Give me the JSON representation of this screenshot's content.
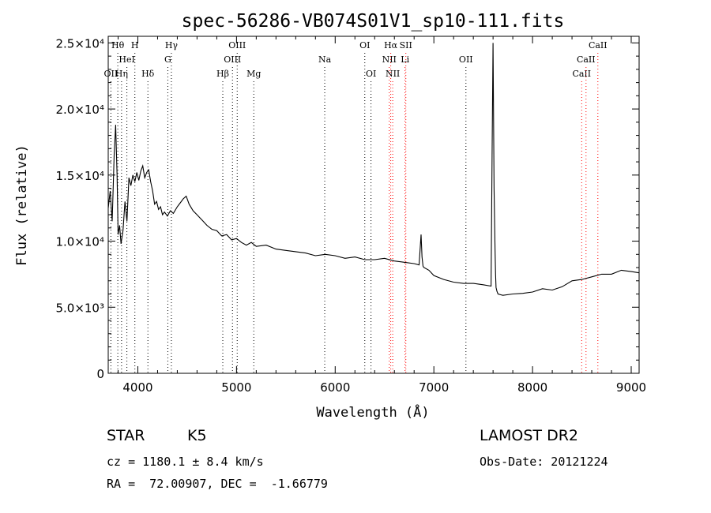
{
  "chart_data": {
    "type": "line",
    "title": "spec-56286-VB074S01V1_sp10-111.fits",
    "xlabel": "Wavelength (Å)",
    "ylabel": "Flux (relative)",
    "xlim": [
      3700,
      9080
    ],
    "ylim": [
      0,
      25500
    ],
    "x_ticks": [
      4000,
      5000,
      6000,
      7000,
      8000,
      9000
    ],
    "y_ticks": [
      {
        "value": 0,
        "label": "0"
      },
      {
        "value": 5000,
        "label": "5.0×10³"
      },
      {
        "value": 10000,
        "label": "1.0×10⁴"
      },
      {
        "value": 15000,
        "label": "1.5×10⁴"
      },
      {
        "value": 20000,
        "label": "2.0×10⁴"
      },
      {
        "value": 25000,
        "label": "2.5×10⁴"
      }
    ],
    "grid": false,
    "series": [
      {
        "x": [
          3700,
          3720,
          3740,
          3760,
          3775,
          3790,
          3800,
          3815,
          3830,
          3850,
          3870,
          3890,
          3910,
          3930,
          3950,
          3970,
          3990,
          4010,
          4030,
          4050,
          4070,
          4090,
          4110,
          4130,
          4150,
          4170,
          4190,
          4210,
          4230,
          4250,
          4270,
          4300,
          4330,
          4360,
          4400,
          4430,
          4460,
          4490,
          4520,
          4560,
          4600,
          4650,
          4700,
          4750,
          4800,
          4850,
          4900,
          4950,
          5000,
          5050,
          5100,
          5150,
          5200,
          5300,
          5400,
          5500,
          5600,
          5700,
          5800,
          5900,
          6000,
          6100,
          6200,
          6300,
          6400,
          6500,
          6600,
          6700,
          6800,
          6850,
          6870,
          6880,
          6890,
          6900,
          6950,
          7000,
          7100,
          7200,
          7300,
          7400,
          7500,
          7580,
          7590,
          7600,
          7605,
          7610,
          7620,
          7625,
          7630,
          7640,
          7650,
          7700,
          7800,
          7900,
          8000,
          8100,
          8200,
          8300,
          8400,
          8500,
          8600,
          8700,
          8800,
          8900,
          9000,
          9080
        ],
        "y": [
          12500,
          13800,
          11500,
          16500,
          18800,
          15000,
          10500,
          11200,
          9800,
          10800,
          13000,
          11500,
          14800,
          14200,
          15000,
          14500,
          15200,
          14600,
          15300,
          15700,
          14800,
          15200,
          15400,
          14500,
          13800,
          12800,
          13000,
          12400,
          12600,
          12000,
          12200,
          11900,
          12300,
          12100,
          12600,
          12900,
          13200,
          13400,
          12800,
          12300,
          12000,
          11600,
          11200,
          10900,
          10800,
          10400,
          10500,
          10100,
          10200,
          9900,
          9700,
          9900,
          9600,
          9700,
          9400,
          9300,
          9200,
          9100,
          8900,
          9000,
          8900,
          8700,
          8800,
          8600,
          8600,
          8700,
          8500,
          8400,
          8300,
          8200,
          10500,
          8800,
          8100,
          8000,
          7800,
          7400,
          7100,
          6900,
          6800,
          6800,
          6700,
          6600,
          16500,
          25000,
          19000,
          14000,
          9500,
          7500,
          6500,
          6200,
          6000,
          5900,
          6000,
          6050,
          6150,
          6400,
          6300,
          6550,
          7000,
          7100,
          7300,
          7500,
          7500,
          7800,
          7700,
          7600
        ]
      }
    ],
    "line_markers": [
      {
        "wl": 3727,
        "label": "OII",
        "row": 3,
        "color": "#000000"
      },
      {
        "wl": 3797,
        "label": "Hθ",
        "row": 1,
        "color": "#000000"
      },
      {
        "wl": 3835,
        "label": "Hη",
        "row": 3,
        "color": "#000000"
      },
      {
        "wl": 3889,
        "label": "HeI",
        "row": 2,
        "color": "#000000"
      },
      {
        "wl": 3970,
        "label": "H",
        "row": 1,
        "color": "#000000"
      },
      {
        "wl": 4102,
        "label": "Hδ",
        "row": 3,
        "color": "#000000"
      },
      {
        "wl": 4304,
        "label": "G",
        "row": 2,
        "color": "#000000"
      },
      {
        "wl": 4340,
        "label": "Hγ",
        "row": 1,
        "color": "#000000"
      },
      {
        "wl": 4861,
        "label": "Hβ",
        "row": 3,
        "color": "#000000"
      },
      {
        "wl": 4959,
        "label": "OIII",
        "row": 2,
        "color": "#000000"
      },
      {
        "wl": 5007,
        "label": "OIII",
        "row": 1,
        "color": "#000000"
      },
      {
        "wl": 5175,
        "label": "Mg",
        "row": 3,
        "color": "#000000"
      },
      {
        "wl": 5894,
        "label": "Na",
        "row": 2,
        "color": "#000000"
      },
      {
        "wl": 6300,
        "label": "OI",
        "row": 1,
        "color": "#000000"
      },
      {
        "wl": 6363,
        "label": "OI",
        "row": 3,
        "color": "#000000"
      },
      {
        "wl": 6548,
        "label": "NII",
        "row": 2,
        "color": "#ff0000"
      },
      {
        "wl": 6563,
        "label": "Hα",
        "row": 1,
        "color": "#ff0000"
      },
      {
        "wl": 6583,
        "label": "NII",
        "row": 3,
        "color": "#ff0000"
      },
      {
        "wl": 6716,
        "label": "SII",
        "row": 1,
        "color": "#ff0000"
      },
      {
        "wl": 6708,
        "label": "Li",
        "row": 2,
        "color": "#ff0000"
      },
      {
        "wl": 7325,
        "label": "OII",
        "row": 2,
        "color": "#000000"
      },
      {
        "wl": 8498,
        "label": "CaII",
        "row": 3,
        "color": "#ff0000"
      },
      {
        "wl": 8542,
        "label": "CaII",
        "row": 2,
        "color": "#ff0000"
      },
      {
        "wl": 8662,
        "label": "CaII",
        "row": 1,
        "color": "#ff0000"
      }
    ]
  },
  "info": {
    "object_class": "STAR",
    "subclass": "K5",
    "survey": "LAMOST DR2",
    "redshift_line": "cz = 1180.1 ± 8.4 km/s",
    "obs_date_line": "Obs-Date: 20121224",
    "coords_line": "RA =  72.00907, DEC =  -1.66779"
  }
}
